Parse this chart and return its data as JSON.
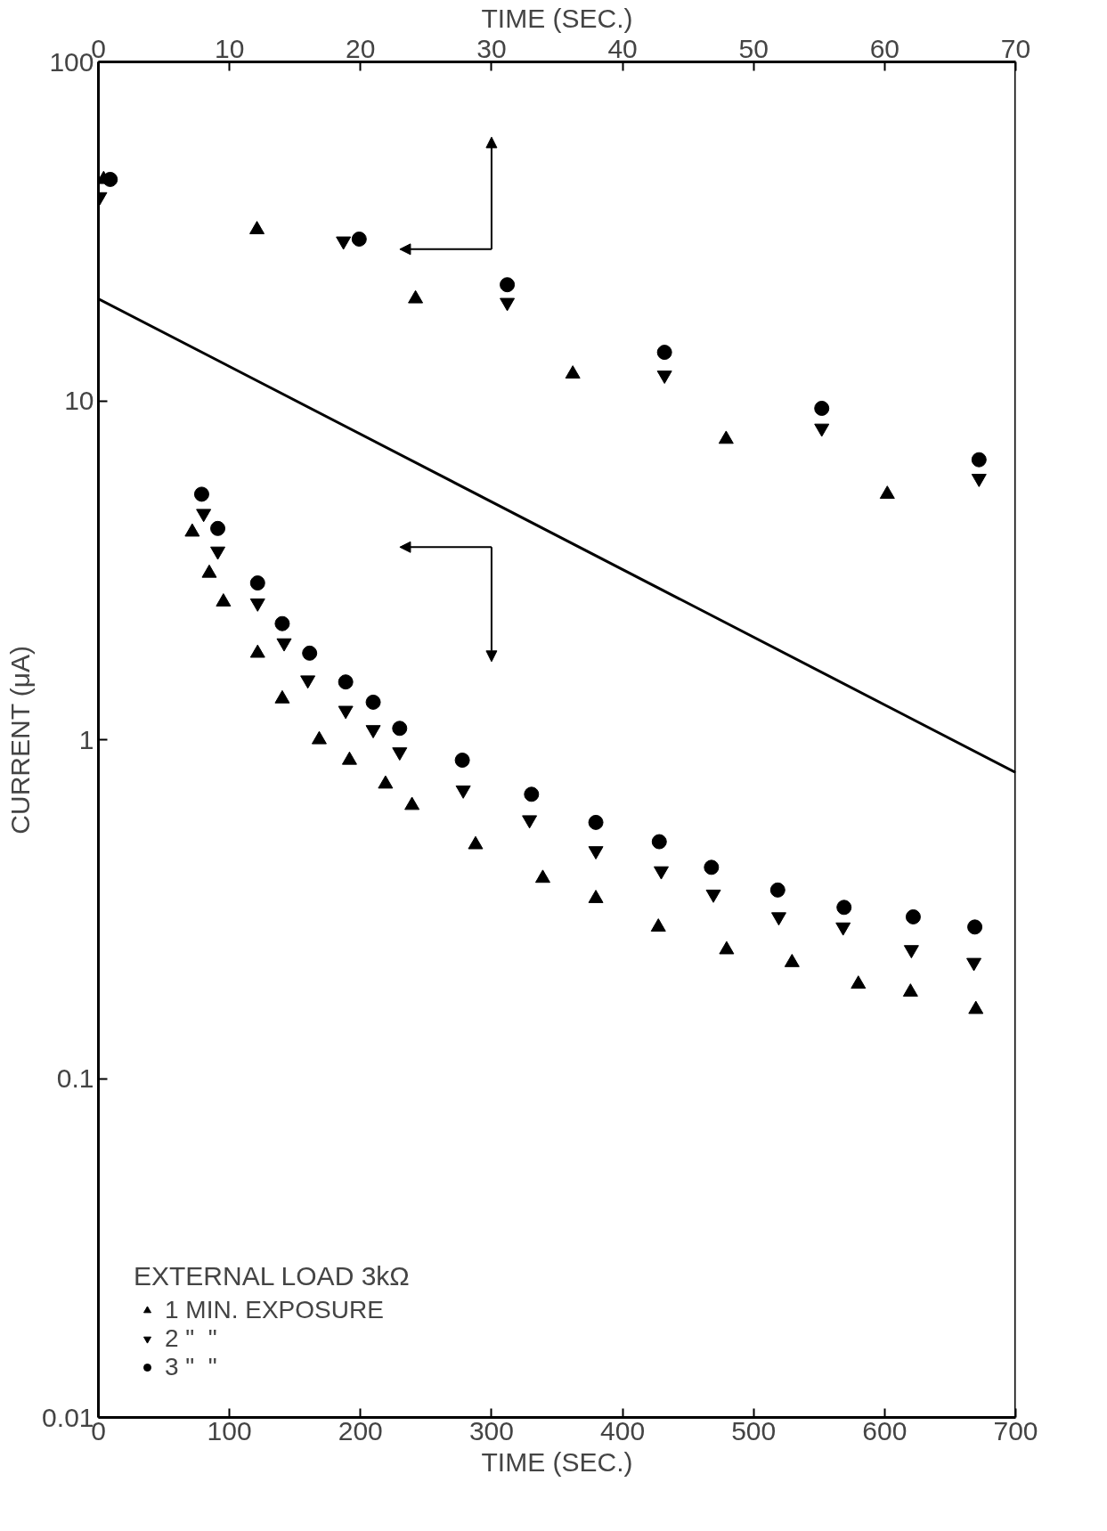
{
  "chart_data": {
    "type": "scatter",
    "xlabel": "TIME (SEC.)",
    "x2label": "TIME (SEC.)",
    "ylabel": "CURRENT (μA)",
    "legend_title": "EXTERNAL LOAD 3kΩ",
    "xlim": [
      0,
      700
    ],
    "xticks": [
      0,
      100,
      200,
      300,
      400,
      500,
      600,
      700
    ],
    "x2lim": [
      0,
      70
    ],
    "x2ticks": [
      0,
      10,
      20,
      30,
      40,
      50,
      60,
      70
    ],
    "ylim": [
      0.01,
      100
    ],
    "yticks": [
      0.01,
      0.1,
      1,
      10,
      100
    ],
    "log": true,
    "grid": false,
    "legend": "bottom left",
    "series": [
      {
        "name": "1 MIN. EXPOSURE",
        "color": "#000000",
        "marker": "triangle",
        "x": [
          71.6,
          84.6,
          95.4,
          121.5,
          140.3,
          168.5,
          191.6,
          219.1,
          239.3,
          287.8,
          339.1,
          379.6,
          427.3,
          479.4,
          529.3,
          579.9,
          619.7,
          669.6
        ],
        "values": [
          4.1,
          3.1,
          2.55,
          1.8,
          1.32,
          1.0,
          0.87,
          0.74,
          0.64,
          0.49,
          0.39,
          0.34,
          0.28,
          0.24,
          0.22,
          0.19,
          0.18,
          0.16
        ]
      },
      {
        "name": "2 \"  \"",
        "color": "#000000",
        "marker": "triangle_down",
        "x": [
          80.3,
          91.1,
          121.5,
          141.7,
          159.8,
          188.7,
          209.7,
          229.9,
          278.4,
          329,
          379.6,
          429.5,
          469.3,
          519.2,
          568.3,
          620.4,
          668.1
        ],
        "values": [
          4.65,
          3.6,
          2.53,
          1.93,
          1.5,
          1.22,
          1.07,
          0.92,
          0.71,
          0.58,
          0.47,
          0.41,
          0.35,
          0.3,
          0.28,
          0.24,
          0.22
        ]
      },
      {
        "name": "3 \"  \"",
        "color": "#000000",
        "marker": "circle",
        "x": [
          78.8,
          91.1,
          121.5,
          140.3,
          161.2,
          188.7,
          209.7,
          229.9,
          277.7,
          330.5,
          379.6,
          428,
          467.8,
          518.4,
          569,
          621.8,
          668.8
        ],
        "values": [
          5.3,
          4.2,
          2.9,
          2.2,
          1.8,
          1.48,
          1.29,
          1.08,
          0.87,
          0.69,
          0.57,
          0.5,
          0.42,
          0.36,
          0.32,
          0.3,
          0.28
        ]
      },
      {
        "color": "#000000",
        "marker": "triangle",
        "axis": "x2",
        "x": [
          0.4,
          12.1,
          24.2,
          36.2,
          47.9,
          60.2
        ],
        "values": [
          45,
          32,
          20,
          12,
          7.7,
          5.3
        ]
      },
      {
        "color": "#000000",
        "marker": "triangle_down",
        "axis": "x2",
        "x": [
          0.1,
          18.7,
          31.2,
          43.2,
          55.2,
          67.2
        ],
        "values": [
          40,
          29.6,
          19.5,
          11.9,
          8.3,
          5.9
        ]
      },
      {
        "color": "#000000",
        "marker": "circle",
        "axis": "x2",
        "x": [
          0.9,
          19.9,
          31.2,
          43.2,
          55.2,
          67.2
        ],
        "values": [
          45,
          30,
          22,
          13.9,
          9.5,
          6.7
        ]
      },
      {
        "type": "line",
        "color": "#000000",
        "marker": "none",
        "line_style": "solid",
        "x": [
          0,
          700
        ],
        "values": [
          20,
          0.8
        ]
      }
    ]
  }
}
